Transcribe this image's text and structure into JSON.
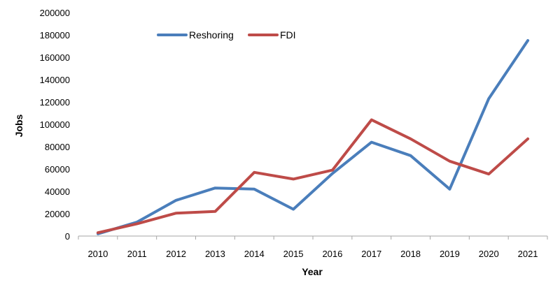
{
  "chart_data": {
    "type": "line",
    "title": "",
    "xlabel": "Year",
    "ylabel": "Jobs",
    "categories": [
      "2010",
      "2011",
      "2012",
      "2013",
      "2014",
      "2015",
      "2016",
      "2017",
      "2018",
      "2019",
      "2020",
      "2021"
    ],
    "ylim": [
      0,
      200000
    ],
    "yticks": [
      "0",
      "20000",
      "40000",
      "60000",
      "80000",
      "100000",
      "120000",
      "140000",
      "160000",
      "180000",
      "200000"
    ],
    "grid": false,
    "legend_position": "top-left",
    "series": [
      {
        "name": "Reshoring",
        "color": "#4A7EBB",
        "values": [
          2000,
          12500,
          32000,
          43000,
          42000,
          24000,
          56000,
          84000,
          72000,
          42000,
          123000,
          175000
        ]
      },
      {
        "name": "FDI",
        "color": "#BE4B48",
        "values": [
          3000,
          11000,
          20500,
          22000,
          57000,
          51000,
          59000,
          104000,
          87000,
          67000,
          55500,
          87000
        ]
      }
    ]
  }
}
